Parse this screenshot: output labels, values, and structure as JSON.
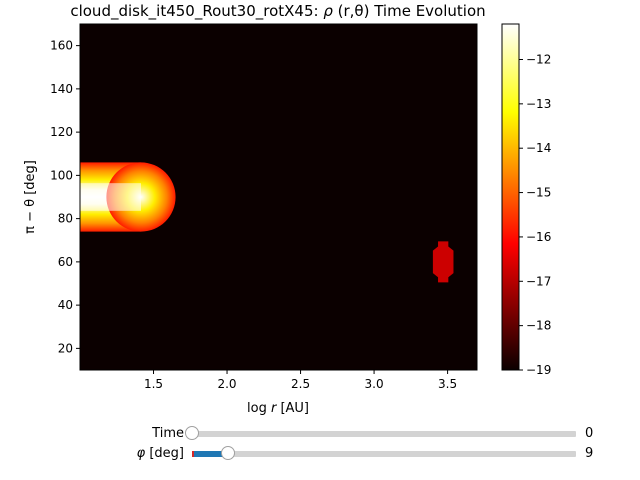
{
  "chart_data": {
    "type": "heatmap",
    "title": "cloud_disk_it450_Rout30_rotX45: ρ (r,θ) Time Evolution",
    "title_parts": {
      "prefix": "cloud_disk_it450_Rout30_rotX45: ",
      "rho": "ρ",
      "args": " (r,θ)",
      "suffix": " Time Evolution"
    },
    "xlabel": "log r [AU]",
    "xlabel_parts": {
      "log": "log ",
      "r": "r",
      "unit": " [AU]"
    },
    "ylabel": "π − θ [deg]",
    "xlim": [
      1.0,
      3.7
    ],
    "ylim": [
      10,
      170
    ],
    "xticks": [
      1.5,
      2.0,
      2.5,
      3.0,
      3.5
    ],
    "xtick_labels": [
      "1.5",
      "2.0",
      "2.5",
      "3.0",
      "3.5"
    ],
    "yticks": [
      20,
      40,
      60,
      80,
      100,
      120,
      140,
      160
    ],
    "ytick_labels": [
      "20",
      "40",
      "60",
      "80",
      "100",
      "120",
      "140",
      "160"
    ],
    "colorbar": {
      "colormap": "hot",
      "range": [
        -19.0,
        -11.2
      ],
      "ticks": [
        -19,
        -18,
        -17,
        -16,
        -15,
        -14,
        -13,
        -12
      ],
      "tick_labels": [
        "−19",
        "−18",
        "−17",
        "−16",
        "−15",
        "−14",
        "−13",
        "−12"
      ]
    },
    "background_value": -19.0,
    "features": [
      {
        "kind": "inner-disk",
        "x_range": [
          1.0,
          1.65
        ],
        "y_center": 90,
        "y_halfwidth": 16,
        "peak_value": -11.3
      },
      {
        "kind": "blob",
        "x_center": 3.47,
        "y_center": 60,
        "x_halfwidth": 0.07,
        "y_halfwidth": 9.5,
        "value": -16.0
      }
    ]
  },
  "sliders": [
    {
      "label": "Time",
      "value": "0",
      "fraction": 0.0
    },
    {
      "label_symbol": "φ",
      "label_unit": " [deg]",
      "value": "9",
      "fraction": 0.094
    }
  ]
}
